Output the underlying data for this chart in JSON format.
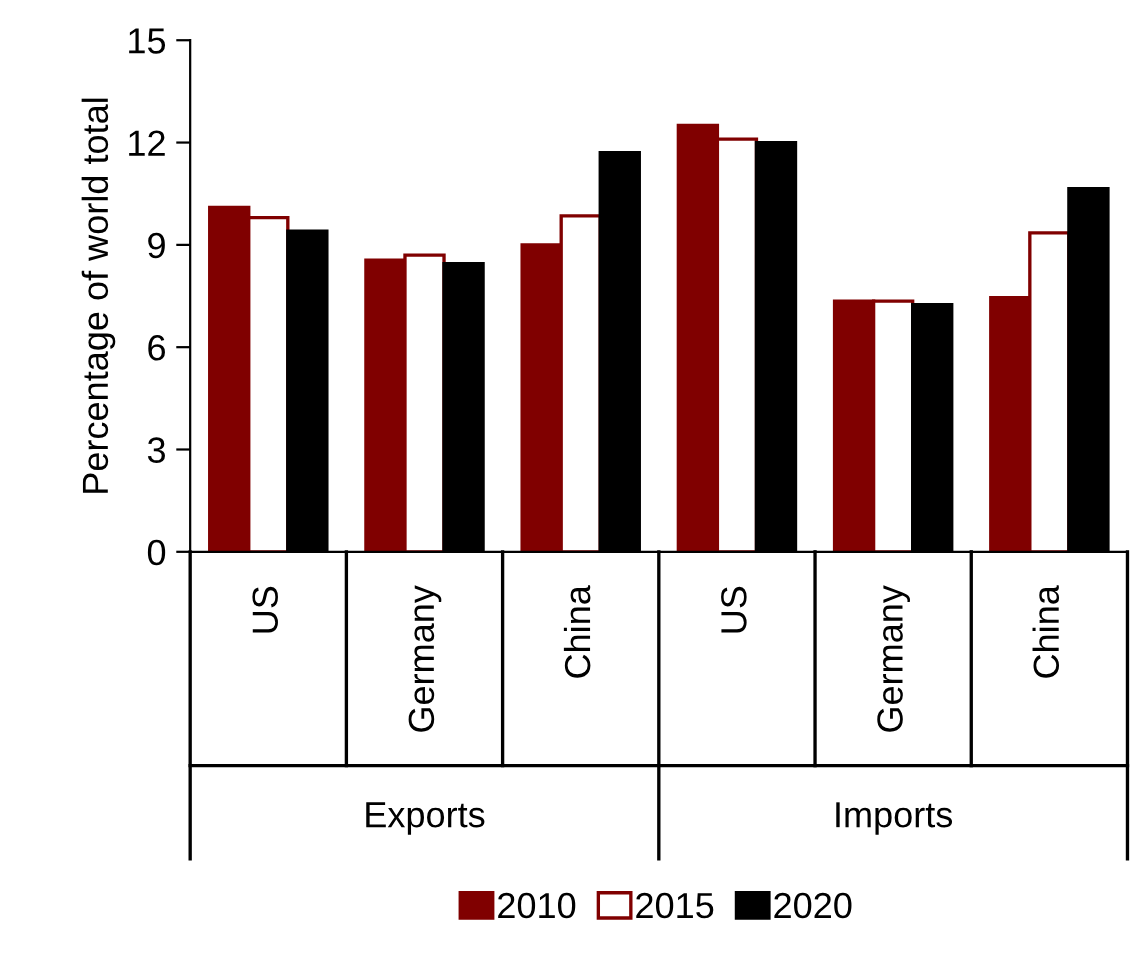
{
  "chart_data": {
    "type": "bar",
    "ylabel": "Percentage of world total",
    "categories": [
      "US",
      "Germany",
      "China",
      "US",
      "Germany",
      "China"
    ],
    "annotations": [
      "Exports",
      "Imports"
    ],
    "series": [
      {
        "name": "2010",
        "color": "#800000",
        "values": [
          10.1,
          8.55,
          9.0,
          12.5,
          7.35,
          7.45
        ]
      },
      {
        "name": "2015",
        "color": "#ffffff",
        "values": [
          9.8,
          8.7,
          9.85,
          12.1,
          7.35,
          9.35
        ]
      },
      {
        "name": "2020",
        "color": "#000000",
        "values": [
          9.4,
          8.45,
          11.7,
          12.0,
          7.25,
          10.65
        ]
      }
    ],
    "ylim": [
      0,
      15
    ],
    "yticks": [
      0,
      3,
      6,
      9,
      12,
      15
    ],
    "grid": false,
    "legend": "bottom"
  }
}
